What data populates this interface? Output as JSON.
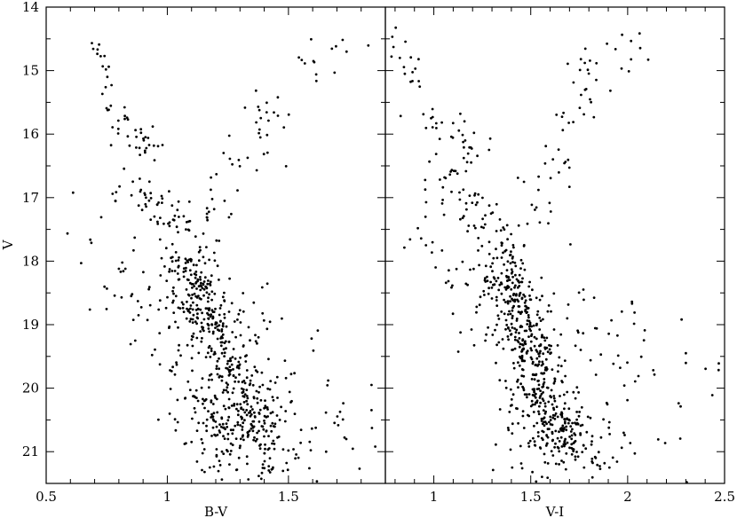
{
  "chart_data": [
    {
      "type": "scatter",
      "name": "cmd-bv",
      "xlabel": "B-V",
      "ylabel": "V",
      "xlim": [
        0.5,
        1.9
      ],
      "ylim": [
        21.5,
        14
      ],
      "y_inverted": true,
      "xticks": [
        0.5,
        1,
        1.5
      ],
      "xtick_labels": [
        "0.5",
        "1",
        "1.5"
      ],
      "yticks": [
        14,
        15,
        16,
        17,
        18,
        19,
        20,
        21
      ],
      "ytick_labels": [
        "14",
        "15",
        "16",
        "17",
        "18",
        "19",
        "20",
        "21"
      ],
      "grid": false,
      "generation": {
        "seed": 12345,
        "groups": [
          {
            "n": 330,
            "x0": 1.08,
            "y0": 18.0,
            "x1": 1.4,
            "y1": 20.8,
            "sx": 0.055,
            "sy": 0.14
          },
          {
            "n": 170,
            "x0": 1.02,
            "y0": 18.0,
            "x1": 1.28,
            "y1": 21.3,
            "sx": 0.085,
            "sy": 0.3
          },
          {
            "n": 110,
            "x0": 1.1,
            "y0": 20.2,
            "x1": 1.5,
            "y1": 21.3,
            "sx": 0.1,
            "sy": 0.25
          },
          {
            "n": 55,
            "x0": 0.8,
            "y0": 16.6,
            "x1": 1.1,
            "y1": 17.7,
            "sx": 0.06,
            "sy": 0.18
          },
          {
            "n": 20,
            "x0": 0.7,
            "y0": 14.5,
            "x1": 0.78,
            "y1": 15.9,
            "sx": 0.02,
            "sy": 0.15
          },
          {
            "n": 30,
            "x0": 0.78,
            "y0": 15.8,
            "x1": 0.98,
            "y1": 16.4,
            "sx": 0.04,
            "sy": 0.15
          },
          {
            "n": 50,
            "x0": 1.1,
            "y0": 17.9,
            "x1": 1.5,
            "y1": 15.0,
            "sx": 0.05,
            "sy": 0.25
          },
          {
            "n": 14,
            "x0": 1.54,
            "y0": 14.9,
            "x1": 1.82,
            "y1": 14.7,
            "sx": 0.04,
            "sy": 0.2
          },
          {
            "n": 90,
            "x0": 1.1,
            "y0": 19.0,
            "x1": 1.8,
            "y1": 20.8,
            "sx": 0.15,
            "sy": 0.6
          },
          {
            "n": 30,
            "x0": 0.62,
            "y0": 17.2,
            "x1": 0.9,
            "y1": 18.8,
            "sx": 0.06,
            "sy": 0.4
          }
        ]
      }
    },
    {
      "type": "scatter",
      "name": "cmd-vi",
      "xlabel": "V-I",
      "ylabel": "",
      "xlim": [
        0.75,
        2.5
      ],
      "ylim": [
        21.5,
        14
      ],
      "y_inverted": true,
      "xticks": [
        1,
        1.5,
        2,
        2.5
      ],
      "xtick_labels": [
        "1",
        "1.5",
        "2",
        "2.5"
      ],
      "grid": false,
      "generation": {
        "seed": 67890,
        "groups": [
          {
            "n": 330,
            "x0": 1.36,
            "y0": 18.0,
            "x1": 1.68,
            "y1": 20.8,
            "sx": 0.06,
            "sy": 0.14
          },
          {
            "n": 170,
            "x0": 1.3,
            "y0": 18.0,
            "x1": 1.62,
            "y1": 21.3,
            "sx": 0.09,
            "sy": 0.3
          },
          {
            "n": 110,
            "x0": 1.45,
            "y0": 20.2,
            "x1": 1.85,
            "y1": 21.2,
            "sx": 0.1,
            "sy": 0.25
          },
          {
            "n": 55,
            "x0": 1.05,
            "y0": 16.6,
            "x1": 1.35,
            "y1": 17.7,
            "sx": 0.06,
            "sy": 0.18
          },
          {
            "n": 20,
            "x0": 0.8,
            "y0": 14.4,
            "x1": 0.98,
            "y1": 15.8,
            "sx": 0.04,
            "sy": 0.15
          },
          {
            "n": 30,
            "x0": 1.02,
            "y0": 15.8,
            "x1": 1.28,
            "y1": 16.4,
            "sx": 0.05,
            "sy": 0.15
          },
          {
            "n": 50,
            "x0": 1.4,
            "y0": 17.9,
            "x1": 1.82,
            "y1": 15.0,
            "sx": 0.06,
            "sy": 0.25
          },
          {
            "n": 12,
            "x0": 1.75,
            "y0": 15.0,
            "x1": 2.1,
            "y1": 14.7,
            "sx": 0.05,
            "sy": 0.2
          },
          {
            "n": 80,
            "x0": 1.5,
            "y0": 19.0,
            "x1": 2.4,
            "y1": 20.5,
            "sx": 0.2,
            "sy": 0.7
          },
          {
            "n": 25,
            "x0": 0.85,
            "y0": 17.2,
            "x1": 1.15,
            "y1": 18.8,
            "sx": 0.06,
            "sy": 0.4
          }
        ]
      }
    }
  ]
}
